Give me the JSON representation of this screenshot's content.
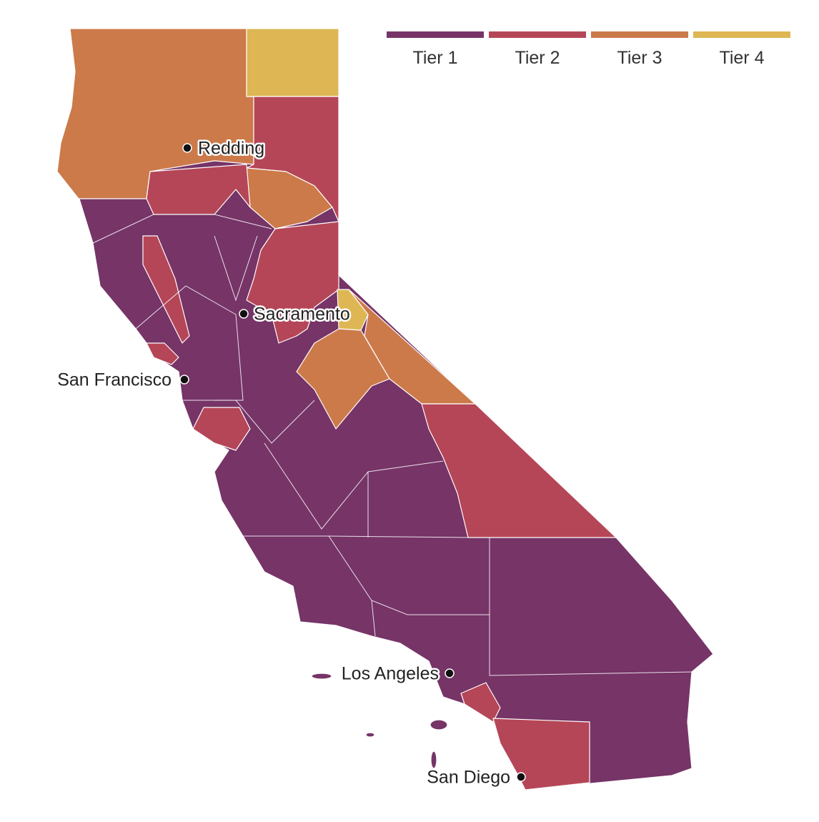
{
  "legend": {
    "items": [
      {
        "label": "Tier 1",
        "color": "#763467"
      },
      {
        "label": "Tier 2",
        "color": "#b54657"
      },
      {
        "label": "Tier 3",
        "color": "#cc7a4a"
      },
      {
        "label": "Tier 4",
        "color": "#deb754"
      }
    ]
  },
  "cities": [
    {
      "name": "Redding"
    },
    {
      "name": "Sacramento"
    },
    {
      "name": "San Francisco"
    },
    {
      "name": "Los Angeles"
    },
    {
      "name": "San Diego"
    }
  ]
}
